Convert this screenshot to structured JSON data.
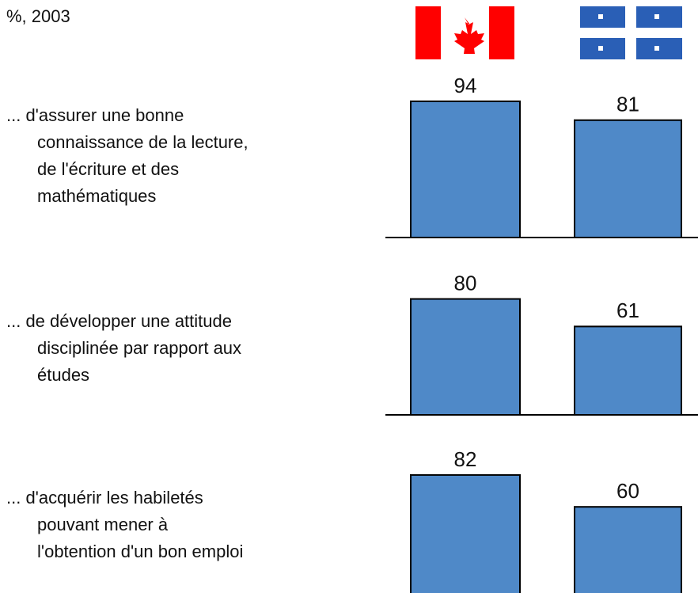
{
  "subtitle": "%, 2003",
  "chart_data": [
    {
      "type": "bar",
      "label": [
        "... d'assurer une bonne",
        "connaissance de la lecture,",
        "de l'écriture et des",
        "mathématiques"
      ],
      "values": [
        94,
        81
      ],
      "color": "#4f89c8",
      "ylim": [
        0,
        100
      ]
    },
    {
      "type": "bar",
      "label": [
        "... de développer une attitude",
        "disciplinée par rapport aux",
        "études"
      ],
      "values": [
        80,
        61
      ],
      "color": "#4f89c8",
      "ylim": [
        0,
        100
      ]
    },
    {
      "type": "bar",
      "label": [
        "... d'acquérir les habiletés",
        "pouvant mener à",
        "l'obtention d'un bon emploi"
      ],
      "values": [
        82,
        60
      ],
      "color": "#4f89c8",
      "ylim": [
        0,
        100
      ]
    }
  ]
}
